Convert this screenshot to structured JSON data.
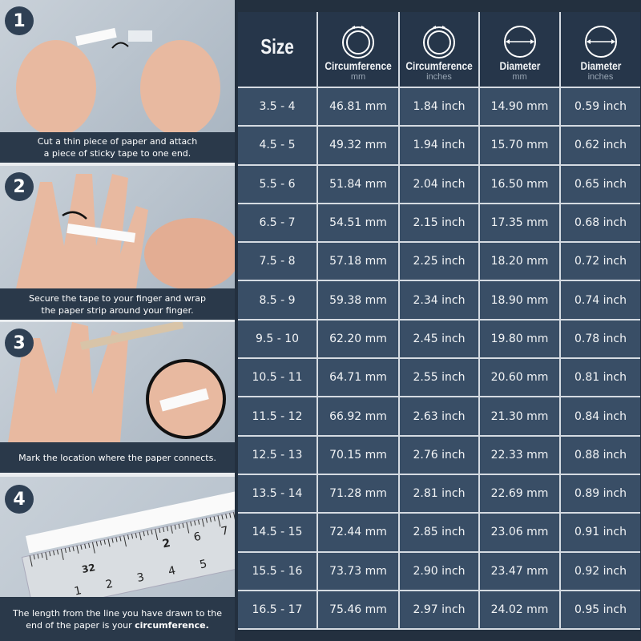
{
  "steps": [
    {
      "number": "1",
      "caption_lines": [
        "Cut a thin piece of paper and attach",
        "a piece of sticky tape to one end."
      ]
    },
    {
      "number": "2",
      "caption_lines": [
        "Secure the tape to your finger and wrap",
        "the paper strip around your finger."
      ]
    },
    {
      "number": "3",
      "caption_lines": [
        "Mark the location where the paper connects."
      ]
    },
    {
      "number": "4",
      "caption_lines": [
        "The length from the line you have drawn to the",
        "end of the paper is your "
      ],
      "caption_bold": "circumference."
    }
  ],
  "ruler_numbers": [
    "1",
    "2",
    "3",
    "4",
    "5",
    "6",
    "7",
    "32",
    "2"
  ],
  "table": {
    "headers": [
      {
        "title": "Size",
        "unit": "",
        "icon": "none"
      },
      {
        "title": "Circumference",
        "unit": "mm",
        "icon": "ring-circumference-icon"
      },
      {
        "title": "Circumference",
        "unit": "inches",
        "icon": "ring-circumference-icon"
      },
      {
        "title": "Diameter",
        "unit": "mm",
        "icon": "ring-diameter-icon"
      },
      {
        "title": "Diameter",
        "unit": "inches",
        "icon": "ring-diameter-icon"
      }
    ],
    "rows": [
      [
        "3.5 - 4",
        "46.81 mm",
        "1.84 inch",
        "14.90 mm",
        "0.59 inch"
      ],
      [
        "4.5 - 5",
        "49.32 mm",
        "1.94 inch",
        "15.70 mm",
        "0.62 inch"
      ],
      [
        "5.5 - 6",
        "51.84 mm",
        "2.04 inch",
        "16.50 mm",
        "0.65 inch"
      ],
      [
        "6.5 - 7",
        "54.51 mm",
        "2.15 inch",
        "17.35 mm",
        "0.68 inch"
      ],
      [
        "7.5 - 8",
        "57.18 mm",
        "2.25 inch",
        "18.20 mm",
        "0.72 inch"
      ],
      [
        "8.5 - 9",
        "59.38 mm",
        "2.34 inch",
        "18.90 mm",
        "0.74 inch"
      ],
      [
        "9.5 - 10",
        "62.20 mm",
        "2.45 inch",
        "19.80 mm",
        "0.78 inch"
      ],
      [
        "10.5 - 11",
        "64.71 mm",
        "2.55 inch",
        "20.60 mm",
        "0.81 inch"
      ],
      [
        "11.5 - 12",
        "66.92 mm",
        "2.63 inch",
        "21.30 mm",
        "0.84 inch"
      ],
      [
        "12.5 - 13",
        "70.15 mm",
        "2.76 inch",
        "22.33 mm",
        "0.88 inch"
      ],
      [
        "13.5 - 14",
        "71.28 mm",
        "2.81 inch",
        "22.69 mm",
        "0.89 inch"
      ],
      [
        "14.5 - 15",
        "72.44 mm",
        "2.85 inch",
        "23.06 mm",
        "0.91 inch"
      ],
      [
        "15.5 - 16",
        "73.73 mm",
        "2.90 inch",
        "23.47 mm",
        "0.92 inch"
      ],
      [
        "16.5 - 17",
        "75.46 mm",
        "2.97 inch",
        "24.02 mm",
        "0.95 inch"
      ]
    ]
  },
  "colors": {
    "background": "#23303f",
    "cell": "#394e66",
    "grid": "#d5dbe2",
    "caption": "#2a394a"
  }
}
